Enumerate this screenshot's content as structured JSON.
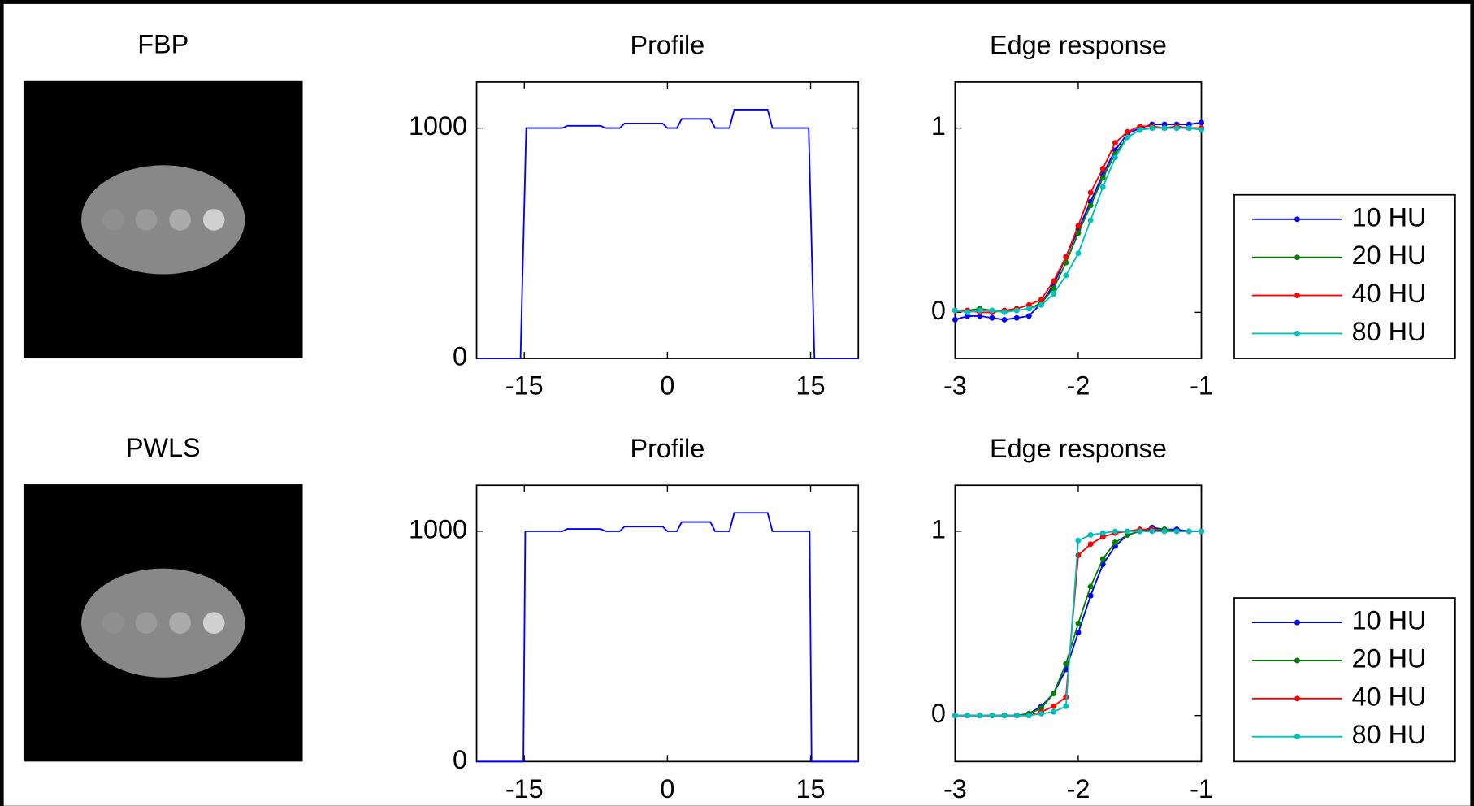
{
  "chart_data": [
    {
      "type": "image",
      "title": "FBP"
    },
    {
      "type": "line",
      "title": "Profile",
      "x": [
        -20,
        -15.4,
        -14.8,
        -11,
        -10.5,
        -7,
        -6.5,
        -5,
        -4.5,
        -0.5,
        0,
        1,
        1.5,
        4.5,
        5,
        6.5,
        7,
        10.5,
        11,
        14.8,
        15.4,
        20
      ],
      "series": [
        {
          "color": "#0000ff",
          "values": [
            0,
            0,
            1000,
            1000,
            1010,
            1010,
            1000,
            1000,
            1020,
            1020,
            1000,
            1000,
            1040,
            1040,
            1000,
            1000,
            1080,
            1080,
            1000,
            1000,
            0,
            0
          ]
        }
      ],
      "xlim": [
        -20,
        20
      ],
      "ylim": [
        0,
        1200
      ],
      "xticks": [
        -15,
        0,
        15
      ],
      "yticks": [
        0,
        1000
      ]
    },
    {
      "type": "line",
      "title": "Edge response",
      "markers": true,
      "legend": "outside-right",
      "x": [
        -3,
        -2.9,
        -2.8,
        -2.7,
        -2.6,
        -2.5,
        -2.4,
        -2.3,
        -2.2,
        -2.1,
        -2,
        -1.9,
        -1.8,
        -1.7,
        -1.6,
        -1.5,
        -1.4,
        -1.3,
        -1.2,
        -1.1,
        -1
      ],
      "series": [
        {
          "name": "10 HU",
          "color": "#0000ff",
          "values": [
            -0.04,
            -0.02,
            -0.02,
            -0.03,
            -0.04,
            -0.03,
            -0.02,
            0.05,
            0.15,
            0.3,
            0.45,
            0.6,
            0.75,
            0.88,
            0.97,
            1.0,
            1.02,
            1.02,
            1.02,
            1.02,
            1.03
          ]
        },
        {
          "name": "20 HU",
          "color": "#008000",
          "values": [
            0.01,
            0.01,
            0.02,
            0.01,
            0.01,
            0.01,
            0.02,
            0.05,
            0.13,
            0.27,
            0.43,
            0.58,
            0.73,
            0.86,
            0.95,
            0.99,
            1.0,
            1.0,
            1.0,
            1.0,
            1.0
          ]
        },
        {
          "name": "40 HU",
          "color": "#ff0000",
          "values": [
            0.01,
            0.01,
            0.0,
            0.0,
            0.01,
            0.02,
            0.04,
            0.07,
            0.17,
            0.3,
            0.47,
            0.65,
            0.78,
            0.92,
            0.98,
            1.01,
            1.01,
            1.0,
            1.01,
            1.0,
            1.0
          ]
        },
        {
          "name": "80 HU",
          "color": "#00bfbf",
          "values": [
            0.01,
            0.0,
            0.01,
            0.01,
            0.0,
            0.01,
            0.02,
            0.04,
            0.1,
            0.2,
            0.32,
            0.5,
            0.68,
            0.84,
            0.95,
            0.99,
            1.0,
            1.0,
            1.0,
            1.0,
            0.99
          ]
        }
      ],
      "xlim": [
        -3,
        -1
      ],
      "ylim": [
        -0.25,
        1.25
      ],
      "xticks": [
        -3,
        -2,
        -1
      ],
      "yticks": [
        0,
        1
      ]
    },
    {
      "type": "image",
      "title": "PWLS"
    },
    {
      "type": "line",
      "title": "Profile",
      "x": [
        -20,
        -15.1,
        -14.9,
        -11,
        -10.5,
        -7,
        -6.5,
        -5,
        -4.5,
        -0.5,
        0,
        1,
        1.5,
        4.5,
        5,
        6.5,
        7,
        10.5,
        11,
        14.9,
        15.1,
        20
      ],
      "series": [
        {
          "color": "#0000ff",
          "values": [
            0,
            0,
            1000,
            1000,
            1010,
            1010,
            1000,
            1000,
            1020,
            1020,
            1000,
            1000,
            1040,
            1040,
            1000,
            1000,
            1080,
            1080,
            1000,
            1000,
            0,
            0
          ]
        }
      ],
      "xlim": [
        -20,
        20
      ],
      "ylim": [
        0,
        1200
      ],
      "xticks": [
        -15,
        0,
        15
      ],
      "yticks": [
        0,
        1000
      ]
    },
    {
      "type": "line",
      "title": "Edge response",
      "markers": true,
      "legend": "outside-right",
      "x": [
        -3,
        -2.9,
        -2.8,
        -2.7,
        -2.6,
        -2.5,
        -2.4,
        -2.3,
        -2.2,
        -2.1,
        -2,
        -1.9,
        -1.8,
        -1.7,
        -1.6,
        -1.5,
        -1.4,
        -1.3,
        -1.2,
        -1.1,
        -1
      ],
      "series": [
        {
          "name": "10 HU",
          "color": "#0000ff",
          "values": [
            0,
            0,
            0,
            0,
            0,
            0,
            0.01,
            0.05,
            0.12,
            0.25,
            0.45,
            0.65,
            0.82,
            0.92,
            0.98,
            1.0,
            1.02,
            1.01,
            1.01,
            1.0,
            1.0
          ]
        },
        {
          "name": "20 HU",
          "color": "#008000",
          "values": [
            0,
            0,
            0,
            0,
            0,
            0,
            0.01,
            0.04,
            0.12,
            0.28,
            0.5,
            0.7,
            0.85,
            0.94,
            0.98,
            1.0,
            1.01,
            1.01,
            1.0,
            1.0,
            1.0
          ]
        },
        {
          "name": "40 HU",
          "color": "#ff0000",
          "values": [
            0,
            0,
            0,
            0,
            0,
            0,
            0,
            0.02,
            0.05,
            0.1,
            0.87,
            0.93,
            0.97,
            0.99,
            1.0,
            1.01,
            1.01,
            1.0,
            1.0,
            1.0,
            1.0
          ]
        },
        {
          "name": "80 HU",
          "color": "#00bfbf",
          "values": [
            0,
            0,
            0,
            0,
            0,
            0,
            0,
            0.01,
            0.02,
            0.05,
            0.95,
            0.98,
            0.99,
            1.0,
            1.0,
            1.0,
            1.0,
            1.0,
            1.0,
            1.0,
            1.0
          ]
        }
      ],
      "xlim": [
        -3,
        -1
      ],
      "ylim": [
        -0.25,
        1.25
      ],
      "xticks": [
        -3,
        -2,
        -1
      ],
      "yticks": [
        0,
        1
      ]
    }
  ]
}
